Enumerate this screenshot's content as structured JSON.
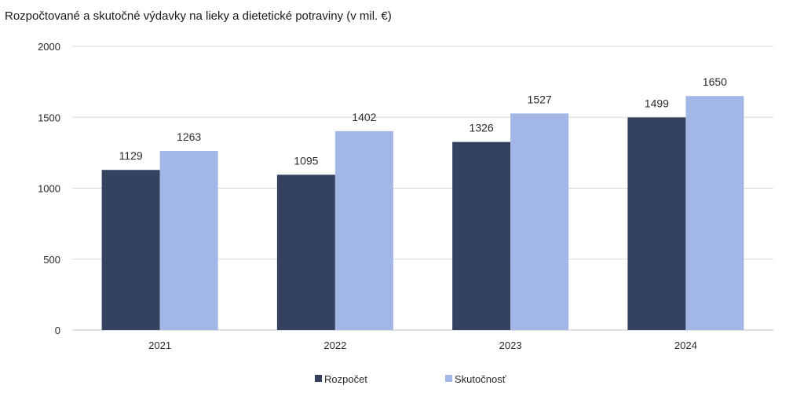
{
  "chart_data": {
    "type": "bar",
    "title": "Rozpočtované a skutočné výdavky na lieky a dietetické potraviny (v mil. €)",
    "xlabel": "",
    "ylabel": "",
    "categories": [
      "2021",
      "2022",
      "2023",
      "2024"
    ],
    "series": [
      {
        "name": "Rozpočet",
        "color": "#344260",
        "values": [
          1129,
          1095,
          1326,
          1499
        ]
      },
      {
        "name": "Skutočnosť",
        "color": "#a3b7e6",
        "values": [
          1263,
          1402,
          1527,
          1650
        ]
      }
    ],
    "ylim": [
      0,
      2000
    ],
    "yticks": [
      0,
      500,
      1000,
      1500,
      2000
    ],
    "grid": true,
    "legend_position": "bottom"
  }
}
